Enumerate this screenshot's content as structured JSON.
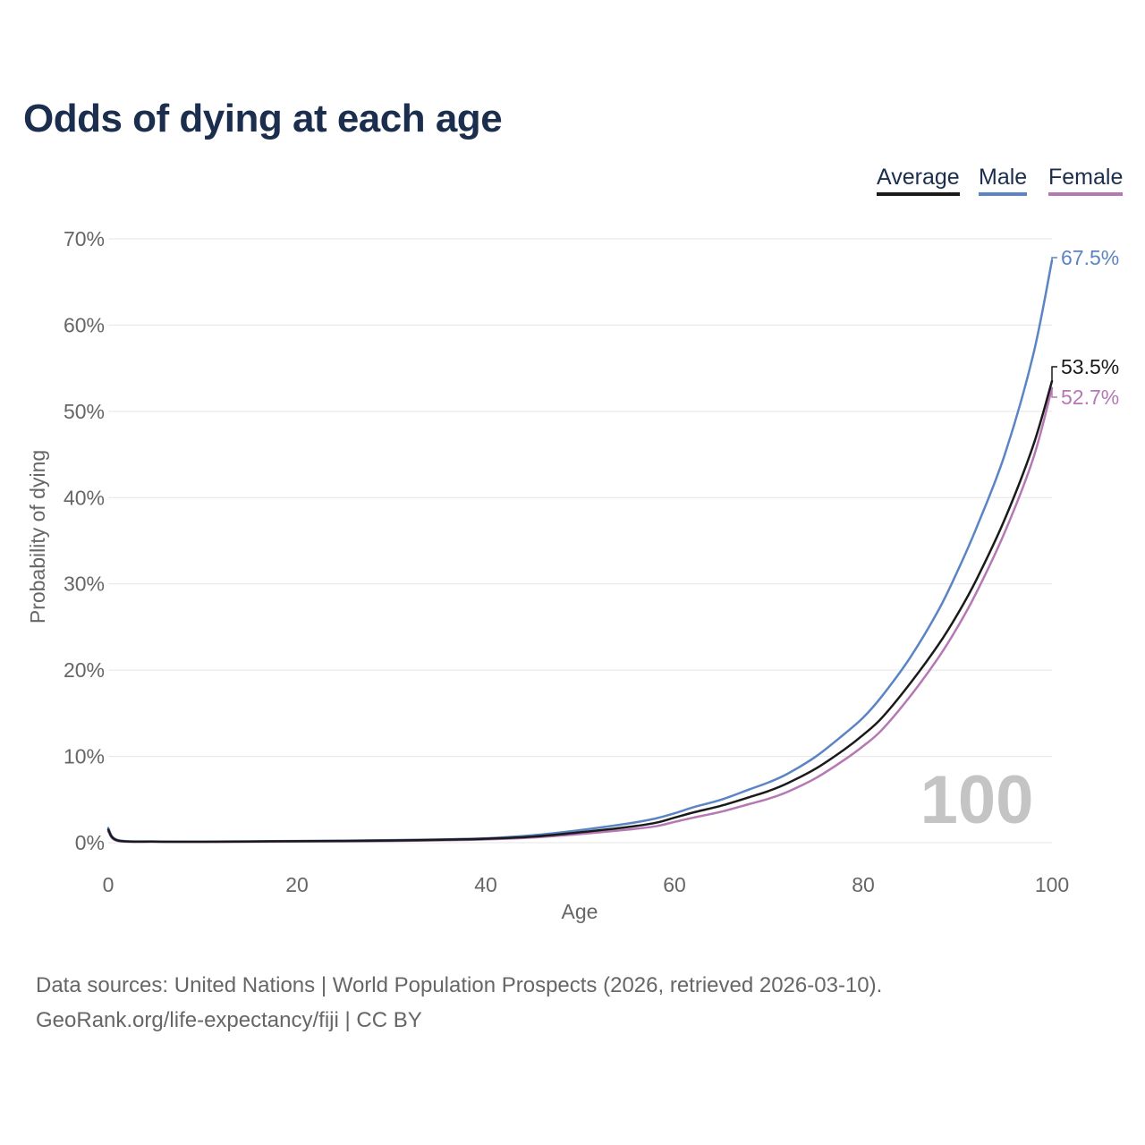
{
  "title": "Odds of dying at each age",
  "legend": {
    "average": "Average",
    "male": "Male",
    "female": "Female"
  },
  "colors": {
    "average": "#1a1a1a",
    "male": "#5b84c4",
    "female": "#b678b4",
    "grid": "#e5e5e5",
    "axis_text": "#666666",
    "title": "#1b2e4d",
    "watermark": "#c4c4c4"
  },
  "watermark": "100",
  "chart_data": {
    "type": "line",
    "title": "Odds of dying at each age",
    "xlabel": "Age",
    "ylabel": "Probability of dying",
    "xlim": [
      0,
      100
    ],
    "ylim": [
      0,
      70
    ],
    "xticks": [
      0,
      20,
      40,
      60,
      80,
      100
    ],
    "xtick_labels": [
      "0",
      "20",
      "40",
      "60",
      "80",
      "100"
    ],
    "yticks": [
      0,
      10,
      20,
      30,
      40,
      50,
      60,
      70
    ],
    "ytick_labels": [
      "0%",
      "10%",
      "20%",
      "30%",
      "40%",
      "50%",
      "60%",
      "70%"
    ],
    "grid": true,
    "legend_position": "top-right",
    "x": [
      0,
      1,
      5,
      10,
      15,
      20,
      25,
      30,
      35,
      40,
      45,
      50,
      55,
      58,
      60,
      62,
      65,
      68,
      70,
      72,
      75,
      78,
      80,
      82,
      85,
      88,
      90,
      92,
      95,
      98,
      100
    ],
    "series": [
      {
        "name": "Average",
        "color_key": "average",
        "end_label": "53.5%",
        "values": [
          1.5,
          0.25,
          0.12,
          0.1,
          0.13,
          0.17,
          0.2,
          0.25,
          0.32,
          0.45,
          0.7,
          1.2,
          1.8,
          2.3,
          2.9,
          3.5,
          4.3,
          5.3,
          6.0,
          6.9,
          8.6,
          10.8,
          12.5,
          14.5,
          18.5,
          23.0,
          26.5,
          30.5,
          37.5,
          46.0,
          53.5
        ]
      },
      {
        "name": "Male",
        "color_key": "male",
        "end_label": "67.5%",
        "values": [
          1.7,
          0.3,
          0.14,
          0.12,
          0.16,
          0.2,
          0.24,
          0.3,
          0.38,
          0.5,
          0.85,
          1.45,
          2.2,
          2.8,
          3.4,
          4.1,
          5.0,
          6.2,
          7.0,
          8.0,
          10.0,
          12.6,
          14.5,
          17.0,
          21.5,
          27.0,
          31.5,
          36.5,
          45.0,
          56.5,
          67.5
        ]
      },
      {
        "name": "Female",
        "color_key": "female",
        "end_label": "52.7%",
        "values": [
          1.3,
          0.2,
          0.1,
          0.08,
          0.1,
          0.13,
          0.15,
          0.2,
          0.27,
          0.38,
          0.6,
          1.0,
          1.5,
          1.9,
          2.4,
          2.9,
          3.6,
          4.5,
          5.1,
          5.9,
          7.5,
          9.6,
          11.2,
          13.1,
          17.0,
          21.5,
          25.0,
          29.0,
          36.0,
          44.5,
          52.7
        ]
      }
    ]
  },
  "footer": {
    "source": "Data sources: United Nations | World Population Prospects (2026, retrieved 2026-03-10).",
    "attribution": "GeoRank.org/life-expectancy/fiji | CC BY"
  }
}
